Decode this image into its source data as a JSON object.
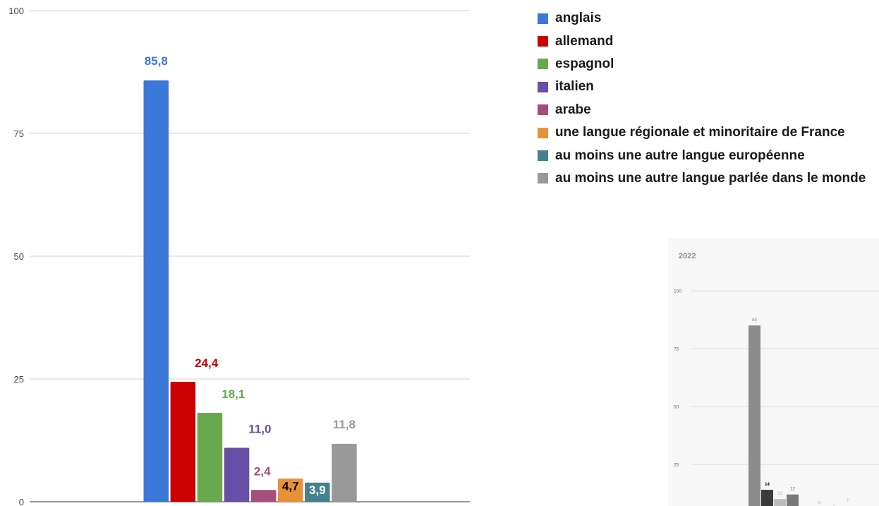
{
  "chart_data": [
    {
      "type": "bar",
      "title": "",
      "xlabel": "",
      "ylabel": "",
      "ylim": [
        0,
        100
      ],
      "yticks": [
        "0",
        "25",
        "50",
        "75",
        "100"
      ],
      "grid": true,
      "legend_position": "right",
      "series": [
        {
          "name": "anglais",
          "value": 85.8,
          "label": "85,8",
          "color": "#3c78d8",
          "label_color": "#3c78d8"
        },
        {
          "name": "allemand",
          "value": 24.4,
          "label": "24,4",
          "color": "#cc0000",
          "label_color": "#cc0000"
        },
        {
          "name": "espagnol",
          "value": 18.1,
          "label": "18,1",
          "color": "#6aa84f",
          "label_color": "#6aa84f"
        },
        {
          "name": "italien",
          "value": 11.0,
          "label": "11,0",
          "color": "#674ea7",
          "label_color": "#674ea7"
        },
        {
          "name": "arabe",
          "value": 2.4,
          "label": "2,4",
          "color": "#a64d79",
          "label_color": "#a64d79"
        },
        {
          "name": "une langue régionale et minoritaire de France",
          "value": 4.7,
          "label": "4,7",
          "color": "#e69138",
          "label_color": "#000000"
        },
        {
          "name": "au moins une autre langue européenne",
          "value": 3.9,
          "label": "3,9",
          "color": "#45818e",
          "label_color": "#ffffff"
        },
        {
          "name": "au moins une autre langue parlée dans le monde",
          "value": 11.8,
          "label": "11,8",
          "color": "#999999",
          "label_color": "#999999"
        }
      ]
    },
    {
      "type": "bar",
      "title": "2022",
      "ylim": [
        0,
        100
      ],
      "yticks": [
        "25",
        "50",
        "75",
        "100"
      ],
      "grid": true,
      "values": [
        85,
        14,
        10,
        12,
        6,
        4,
        7
      ],
      "labels": [
        "85",
        "14",
        "10",
        "12",
        "6",
        "4",
        "7"
      ],
      "colors": [
        "#8c8c8c",
        "#3a3a3a",
        "#bdbdbd",
        "#7a7a7a",
        "#d9d9d9",
        "#222222",
        "#d0d0d0"
      ],
      "label_colors": [
        "#8c8c8c",
        "#000000",
        "#b3b3b3",
        "#666666",
        "#b3b3b3",
        "#000000",
        "#b3b3b3"
      ]
    }
  ]
}
